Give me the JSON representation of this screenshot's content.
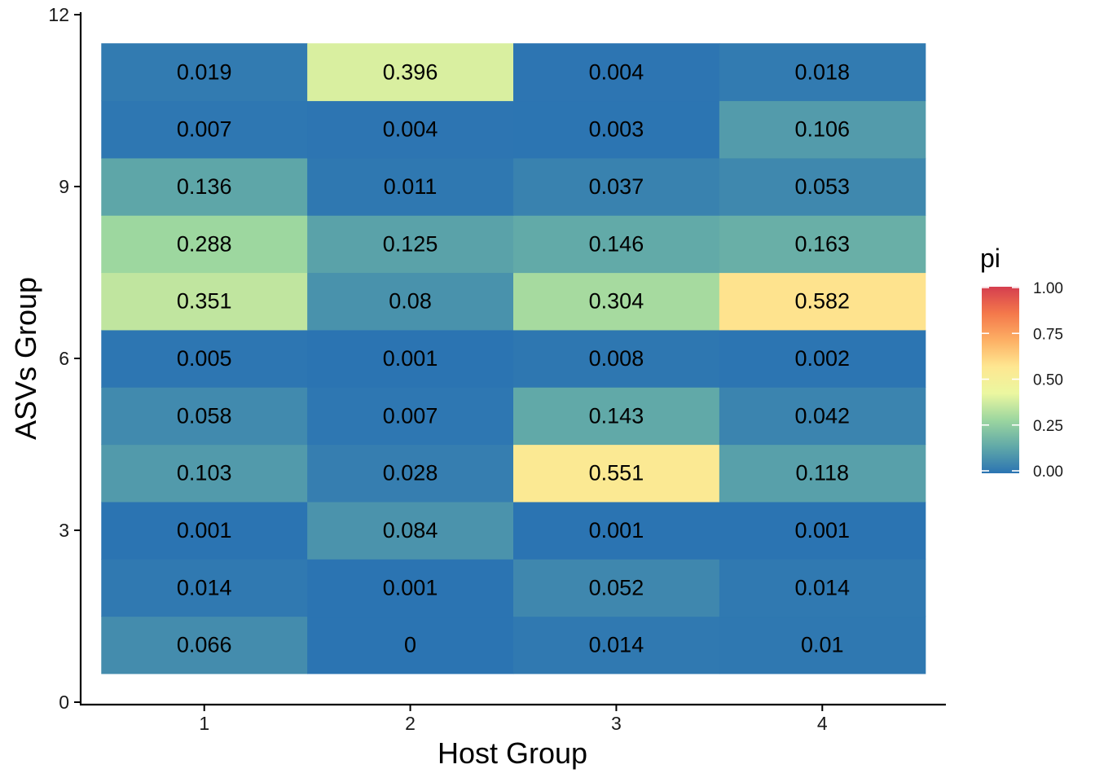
{
  "chart_data": {
    "type": "heatmap",
    "xlabel": "Host Group",
    "ylabel": "ASVs Group",
    "x_categories": [
      1,
      2,
      3,
      4
    ],
    "y_categories": [
      1,
      2,
      3,
      4,
      5,
      6,
      7,
      8,
      9,
      10,
      11
    ],
    "x_ticks": [
      "1",
      "2",
      "3",
      "4"
    ],
    "y_ticks": [
      "0",
      "3",
      "6",
      "9",
      "12"
    ],
    "y_tick_values": [
      0,
      3,
      6,
      9,
      12
    ],
    "xlim": [
      0.4,
      4.6
    ],
    "ylim": [
      0,
      12
    ],
    "grid": false,
    "values": [
      [
        0.066,
        0,
        0.014,
        0.01
      ],
      [
        0.014,
        0.001,
        0.052,
        0.014
      ],
      [
        0.001,
        0.084,
        0.001,
        0.001
      ],
      [
        0.103,
        0.028,
        0.551,
        0.118
      ],
      [
        0.058,
        0.007,
        0.143,
        0.042
      ],
      [
        0.005,
        0.001,
        0.008,
        0.002
      ],
      [
        0.351,
        0.08,
        0.304,
        0.582
      ],
      [
        0.288,
        0.125,
        0.146,
        0.163
      ],
      [
        0.136,
        0.011,
        0.037,
        0.053
      ],
      [
        0.007,
        0.004,
        0.003,
        0.106
      ],
      [
        0.019,
        0.396,
        0.004,
        0.018
      ]
    ],
    "labels": [
      [
        "0.066",
        "0",
        "0.014",
        "0.01"
      ],
      [
        "0.014",
        "0.001",
        "0.052",
        "0.014"
      ],
      [
        "0.001",
        "0.084",
        "0.001",
        "0.001"
      ],
      [
        "0.103",
        "0.028",
        "0.551",
        "0.118"
      ],
      [
        "0.058",
        "0.007",
        "0.143",
        "0.042"
      ],
      [
        "0.005",
        "0.001",
        "0.008",
        "0.002"
      ],
      [
        "0.351",
        "0.08",
        "0.304",
        "0.582"
      ],
      [
        "0.288",
        "0.125",
        "0.146",
        "0.163"
      ],
      [
        "0.136",
        "0.011",
        "0.037",
        "0.053"
      ],
      [
        "0.007",
        "0.004",
        "0.003",
        "0.106"
      ],
      [
        "0.019",
        "0.396",
        "0.004",
        "0.018"
      ]
    ],
    "legend": {
      "title": "pi",
      "position": "right",
      "breaks": [
        0,
        0.25,
        0.5,
        0.75,
        1.0
      ],
      "labels": [
        "0.00",
        "0.25",
        "0.50",
        "0.75",
        "1.00"
      ],
      "colors": [
        "#2B74B2",
        "#61A9A8",
        "#9CD69F",
        "#EBF7A0",
        "#FEE791",
        "#FDAF64",
        "#F4784B",
        "#D53E4F"
      ]
    }
  }
}
